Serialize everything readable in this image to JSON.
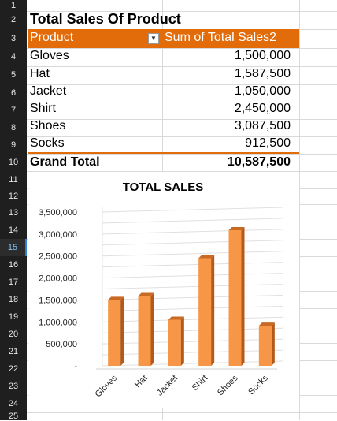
{
  "row_numbers": [
    "1",
    "2",
    "3",
    "4",
    "5",
    "6",
    "7",
    "8",
    "9",
    "10",
    "11",
    "12",
    "13",
    "14",
    "15",
    "16",
    "17",
    "18",
    "19",
    "20",
    "21",
    "22",
    "23",
    "24",
    "25"
  ],
  "active_row": "15",
  "pivot": {
    "title": "Total Sales Of Product",
    "col_product": "Product",
    "col_sum": "Sum of Total Sales2",
    "rows": [
      {
        "product": "Gloves",
        "value": "1,500,000"
      },
      {
        "product": "Hat",
        "value": "1,587,500"
      },
      {
        "product": "Jacket",
        "value": "1,050,000"
      },
      {
        "product": "Shirt",
        "value": "2,450,000"
      },
      {
        "product": "Shoes",
        "value": "3,087,500"
      },
      {
        "product": "Socks",
        "value": "912,500"
      }
    ],
    "grand_total_label": "Grand Total",
    "grand_total_value": "10,587,500"
  },
  "colors": {
    "header": "#e26b0a",
    "bar": "#f79646",
    "bar_side": "#b35a1a"
  },
  "chart_data": {
    "type": "bar",
    "title": "TOTAL SALES",
    "categories": [
      "Gloves",
      "Hat",
      "Jacket",
      "Shirt",
      "Shoes",
      "Socks"
    ],
    "values": [
      1500000,
      1587500,
      1050000,
      2450000,
      3087500,
      912500
    ],
    "ylim": [
      0,
      3500000
    ],
    "yticks": [
      "-",
      "500,000",
      "1,000,000",
      "1,500,000",
      "2,000,000",
      "2,500,000",
      "3,000,000",
      "3,500,000"
    ],
    "grid": true
  }
}
